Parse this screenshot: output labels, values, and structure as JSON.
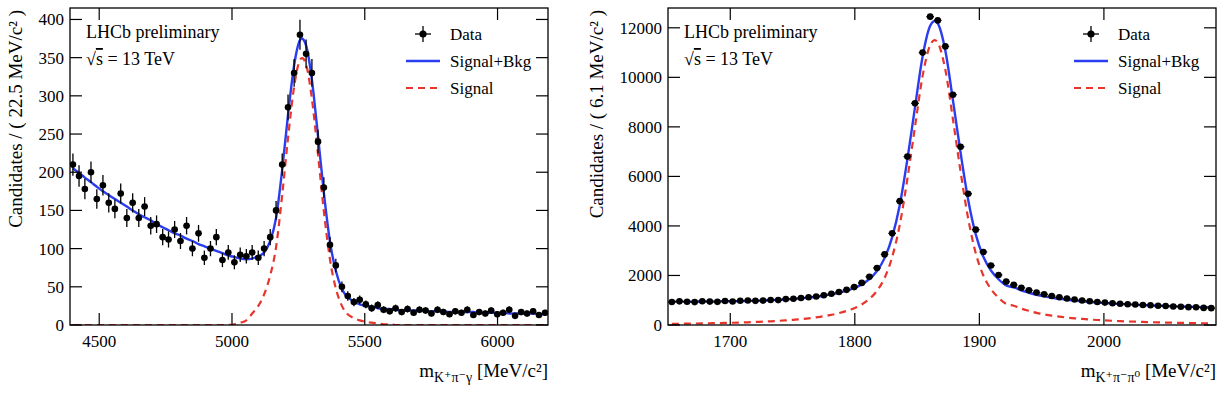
{
  "chart_data": [
    {
      "type": "scatter",
      "xlabel": "mK⁺π⁻γ [MeV/c²]",
      "ylabel": "Candidates / ( 22.5 MeV/c² )",
      "annotations": [
        "LHCb preliminary",
        "√s = 13 TeV"
      ],
      "xlim": [
        4390,
        6190
      ],
      "xticks": [
        4500,
        5000,
        5500,
        6000
      ],
      "ylim": [
        0,
        415
      ],
      "yticks": [
        0,
        50,
        100,
        150,
        200,
        250,
        300,
        350,
        400
      ],
      "grid": false,
      "legend": "upper right",
      "bin_width": 22.5,
      "x": [
        4401,
        4424,
        4446,
        4469,
        4491,
        4514,
        4536,
        4559,
        4581,
        4604,
        4626,
        4649,
        4671,
        4694,
        4716,
        4739,
        4761,
        4784,
        4806,
        4829,
        4851,
        4874,
        4896,
        4919,
        4941,
        4964,
        4986,
        5009,
        5031,
        5054,
        5076,
        5099,
        5121,
        5144,
        5166,
        5189,
        5211,
        5234,
        5256,
        5279,
        5301,
        5324,
        5346,
        5369,
        5391,
        5414,
        5436,
        5459,
        5481,
        5504,
        5526,
        5549,
        5571,
        5594,
        5616,
        5639,
        5661,
        5684,
        5706,
        5729,
        5751,
        5774,
        5796,
        5819,
        5841,
        5864,
        5886,
        5909,
        5931,
        5954,
        5976,
        5999,
        6021,
        6044,
        6066,
        6089,
        6111,
        6134,
        6156,
        6179
      ],
      "series": [
        {
          "name": "Data",
          "type": "scatter",
          "color": "#000000",
          "marker": "circle",
          "values": [
            210,
            195,
            178,
            200,
            165,
            183,
            160,
            152,
            172,
            140,
            160,
            140,
            155,
            130,
            132,
            115,
            112,
            125,
            110,
            130,
            100,
            120,
            88,
            100,
            115,
            85,
            95,
            82,
            92,
            90,
            95,
            88,
            100,
            115,
            150,
            210,
            285,
            330,
            380,
            355,
            330,
            240,
            180,
            105,
            78,
            50,
            38,
            30,
            33,
            27,
            22,
            26,
            20,
            18,
            22,
            17,
            21,
            16,
            20,
            19,
            15,
            20,
            17,
            14,
            18,
            16,
            20,
            13,
            17,
            15,
            19,
            14,
            16,
            20,
            12,
            17,
            15,
            18,
            13,
            16
          ],
          "errors": [
            14.5,
            14.0,
            13.3,
            14.1,
            12.8,
            13.5,
            12.6,
            12.3,
            13.1,
            11.8,
            12.6,
            11.8,
            12.4,
            11.4,
            11.5,
            10.7,
            10.6,
            11.2,
            10.5,
            11.4,
            10.0,
            11.0,
            9.4,
            10.0,
            10.7,
            9.2,
            9.7,
            9.1,
            9.6,
            9.5,
            9.7,
            9.4,
            10.0,
            10.7,
            12.2,
            14.5,
            16.9,
            18.2,
            19.5,
            18.8,
            18.2,
            15.5,
            13.4,
            10.2,
            8.8,
            7.1,
            6.2,
            5.5,
            5.7,
            5.2,
            4.7,
            5.1,
            4.5,
            4.2,
            4.7,
            4.1,
            4.6,
            4.0,
            4.5,
            4.4,
            3.9,
            4.5,
            4.1,
            3.7,
            4.2,
            4.0,
            4.5,
            3.6,
            4.1,
            3.9,
            4.4,
            3.7,
            4.0,
            4.5,
            3.5,
            4.1,
            3.9,
            4.2,
            3.6,
            4.0
          ]
        },
        {
          "name": "Signal+Bkg",
          "type": "line",
          "color": "#2a3df0",
          "line_style": "solid",
          "values": [
            205,
            199,
            193,
            187,
            181,
            175,
            170,
            165,
            160,
            155,
            150,
            145,
            141,
            137,
            132,
            128,
            124,
            120,
            117,
            113,
            110,
            106,
            103,
            100,
            97,
            94,
            91,
            89,
            87,
            86,
            87,
            90,
            95,
            110,
            140,
            203,
            275,
            340,
            373,
            366,
            321,
            247,
            173,
            109,
            71,
            47,
            36,
            31,
            27,
            25,
            24,
            22,
            21,
            21,
            20,
            19,
            19,
            19,
            19,
            18,
            18,
            18,
            18,
            17,
            17,
            17,
            17,
            17,
            16,
            16,
            16,
            16,
            16,
            15,
            15,
            15,
            15,
            15,
            14,
            14
          ]
        },
        {
          "name": "Signal",
          "type": "line",
          "color": "#e8352b",
          "line_style": "dashed",
          "values": [
            0,
            0,
            0,
            0,
            0,
            0,
            0,
            0,
            0,
            0,
            0,
            0,
            0,
            0,
            0,
            0,
            0,
            0,
            0,
            0,
            0,
            0,
            0,
            0,
            0,
            0,
            0,
            1,
            3,
            6,
            15,
            25,
            40,
            65,
            102,
            170,
            245,
            312,
            347,
            341,
            296,
            223,
            149,
            86,
            48,
            25,
            14,
            9,
            6,
            4,
            3,
            2,
            1,
            1,
            0,
            0,
            0,
            0,
            0,
            0,
            0,
            0,
            0,
            0,
            0,
            0,
            0,
            0,
            0,
            0,
            0,
            0,
            0,
            0,
            0,
            0,
            0,
            0,
            0,
            0
          ]
        }
      ]
    },
    {
      "type": "scatter",
      "xlabel": "mK⁺π⁻π⁰ [MeV/c²]",
      "ylabel": "Candidates / ( 6.1 MeV/c² )",
      "annotations": [
        "LHCb preliminary",
        "√s = 13 TeV"
      ],
      "xlim": [
        1650,
        2090
      ],
      "xticks": [
        1700,
        1800,
        1900,
        2000
      ],
      "ylim": [
        0,
        12800
      ],
      "yticks": [
        0,
        2000,
        4000,
        6000,
        8000,
        10000,
        12000
      ],
      "grid": false,
      "legend": "upper right",
      "bin_width": 6.1,
      "x": [
        1653.1,
        1659.2,
        1665.3,
        1671.4,
        1677.5,
        1683.6,
        1689.7,
        1695.8,
        1701.9,
        1708.0,
        1714.1,
        1720.2,
        1726.3,
        1732.4,
        1738.5,
        1744.6,
        1750.7,
        1756.8,
        1762.9,
        1769.0,
        1775.1,
        1781.2,
        1787.3,
        1793.4,
        1799.5,
        1805.6,
        1811.7,
        1817.8,
        1823.9,
        1830.0,
        1836.1,
        1842.2,
        1848.3,
        1854.4,
        1860.5,
        1866.6,
        1872.7,
        1878.8,
        1884.9,
        1891.0,
        1897.1,
        1903.2,
        1909.3,
        1915.4,
        1921.5,
        1927.6,
        1933.7,
        1939.8,
        1945.9,
        1952.0,
        1958.1,
        1964.2,
        1970.3,
        1976.4,
        1982.5,
        1988.6,
        1994.7,
        2000.8,
        2006.9,
        2013.0,
        2019.1,
        2025.2,
        2031.3,
        2037.4,
        2043.5,
        2049.6,
        2055.7,
        2061.8,
        2067.9,
        2074.0,
        2080.1,
        2086.2
      ],
      "series": [
        {
          "name": "Data",
          "type": "scatter",
          "color": "#000000",
          "marker": "circle",
          "values": [
            930,
            955,
            940,
            925,
            960,
            945,
            935,
            970,
            950,
            980,
            990,
            975,
            985,
            1010,
            1005,
            1045,
            1060,
            1090,
            1120,
            1150,
            1200,
            1260,
            1330,
            1420,
            1530,
            1700,
            1950,
            2300,
            2850,
            3700,
            5000,
            6800,
            8950,
            11000,
            12450,
            12300,
            11250,
            9300,
            7200,
            5300,
            3850,
            2950,
            2400,
            2020,
            1750,
            1620,
            1500,
            1400,
            1310,
            1240,
            1170,
            1120,
            1070,
            1030,
            990,
            960,
            930,
            905,
            880,
            860,
            840,
            825,
            810,
            795,
            780,
            765,
            750,
            735,
            720,
            715,
            690,
            680
          ],
          "errors": [
            30.5,
            30.9,
            30.7,
            30.4,
            31.0,
            30.7,
            30.6,
            31.1,
            30.8,
            31.3,
            31.5,
            31.2,
            31.4,
            31.8,
            31.7,
            32.3,
            32.6,
            33.0,
            33.5,
            33.9,
            34.6,
            35.5,
            36.5,
            37.7,
            39.1,
            41.2,
            44.2,
            48.0,
            53.4,
            60.8,
            70.7,
            82.5,
            94.6,
            104.9,
            111.6,
            110.9,
            106.1,
            96.4,
            84.9,
            72.8,
            62.0,
            54.3,
            49.0,
            44.9,
            41.8,
            40.2,
            38.7,
            37.4,
            36.2,
            35.2,
            34.2,
            33.5,
            32.7,
            32.1,
            31.5,
            31.0,
            30.5,
            30.1,
            29.7,
            29.3,
            29.0,
            28.7,
            28.5,
            28.2,
            27.9,
            27.7,
            27.4,
            27.1,
            26.8,
            26.7,
            26.3,
            26.1
          ]
        },
        {
          "name": "Signal+Bkg",
          "type": "line",
          "color": "#2a3df0",
          "line_style": "solid",
          "values": [
            944,
            944,
            945,
            946,
            948,
            950,
            953,
            956,
            961,
            966,
            973,
            981,
            991,
            1002,
            1017,
            1033,
            1052,
            1078,
            1105,
            1141,
            1183,
            1234,
            1301,
            1387,
            1494,
            1640,
            1857,
            2183,
            2700,
            3546,
            4843,
            6689,
            8786,
            10832,
            12079,
            12175,
            11072,
            9068,
            6965,
            5061,
            3658,
            2754,
            2201,
            1847,
            1594,
            1520,
            1397,
            1303,
            1220,
            1156,
            1103,
            1054,
            1016,
            982,
            954,
            927,
            904,
            883,
            865,
            847,
            832,
            817,
            804,
            791,
            780,
            769,
            759,
            749,
            740,
            731,
            723,
            715
          ]
        },
        {
          "name": "Signal",
          "type": "line",
          "color": "#e8352b",
          "line_style": "dashed",
          "values": [
            46,
            50,
            54,
            59,
            64,
            70,
            76,
            83,
            91,
            100,
            110,
            122,
            135,
            150,
            168,
            188,
            210,
            240,
            270,
            310,
            355,
            410,
            480,
            570,
            680,
            830,
            1050,
            1380,
            1900,
            2750,
            4050,
            5900,
            8000,
            10050,
            11300,
            11400,
            10300,
            8300,
            6200,
            4300,
            2900,
            2000,
            1450,
            1100,
            850,
            780,
            660,
            570,
            490,
            430,
            380,
            335,
            300,
            270,
            245,
            222,
            202,
            185,
            170,
            156,
            144,
            133,
            123,
            114,
            106,
            99,
            92,
            86,
            80,
            75,
            70,
            66
          ]
        }
      ]
    }
  ]
}
